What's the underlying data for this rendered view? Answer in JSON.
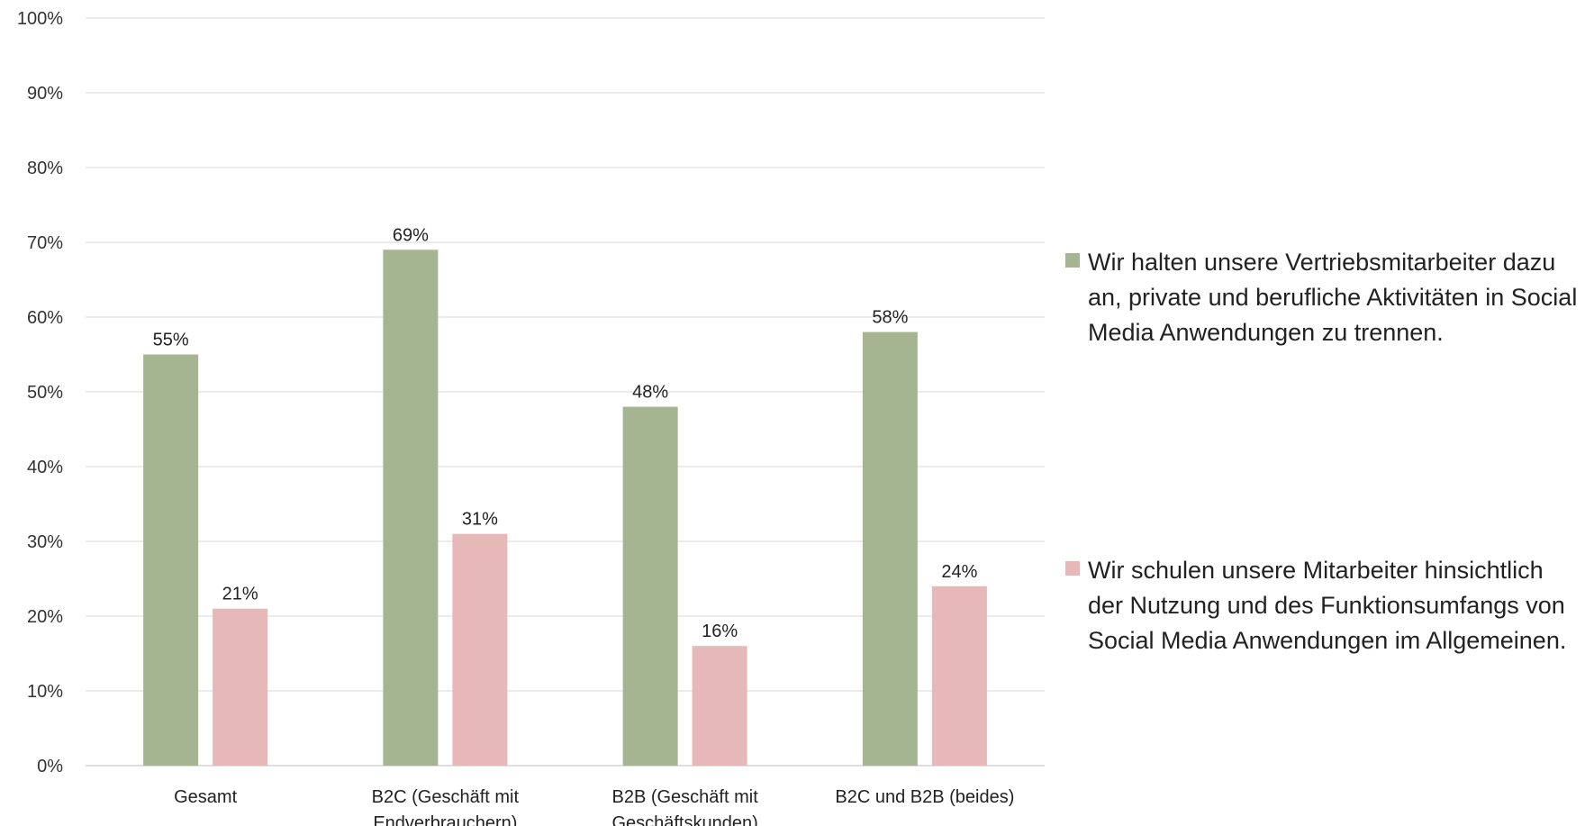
{
  "chart_data": {
    "type": "bar",
    "categories": [
      [
        "Gesamt"
      ],
      [
        "B2C (Geschäft mit",
        "Endverbrauchern)"
      ],
      [
        "B2B (Geschäft mit",
        "Geschäftskunden)"
      ],
      [
        "B2C und B2B (beides)"
      ]
    ],
    "series": [
      {
        "name": "Wir halten unsere Vertriebsmitarbeiter dazu an, private und berufliche Aktivitäten in Social Media Anwendungen zu trennen.",
        "values": [
          55,
          69,
          48,
          58
        ],
        "labels": [
          "55%",
          "69%",
          "48%",
          "58%"
        ],
        "color": "#a5b591"
      },
      {
        "name": "Wir schulen unsere Mitarbeiter hinsichtlich der Nutzung und des Funktionsumfangs von Social Media Anwendungen im Allgemeinen.",
        "values": [
          21,
          31,
          16,
          24
        ],
        "labels": [
          "21%",
          "31%",
          "16%",
          "24%"
        ],
        "color": "#e6b8b7"
      }
    ],
    "yticks": [
      "0%",
      "10%",
      "20%",
      "30%",
      "40%",
      "50%",
      "60%",
      "70%",
      "80%",
      "90%",
      "100%"
    ],
    "ylim": [
      0,
      100
    ],
    "grid": true,
    "legend_position": "right"
  }
}
